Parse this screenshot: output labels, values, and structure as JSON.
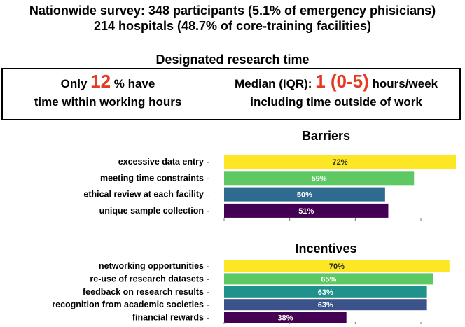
{
  "header": {
    "line1": "Nationwide survey: 348 participants (5.1% of emergency phisicians)",
    "line2": "214 hospitals (48.7% of core-training facilities)"
  },
  "research_time": {
    "title": "Designated research time",
    "left_prefix": "Only ",
    "left_value": "12",
    "left_suffix": " % have",
    "left_line2": "time within working hours",
    "right_prefix": "Median (IQR): ",
    "right_value": "1 (0-5)",
    "right_suffix": " hours/week",
    "right_line2": "including time outside of work",
    "accent_color": "#e53a23"
  },
  "chart_data": [
    {
      "type": "bar",
      "orientation": "horizontal",
      "title": "Barriers",
      "categories": [
        "excessive data entry",
        "meeting time constraints",
        "ethical review at each facility",
        "unique sample collection"
      ],
      "values": [
        72,
        59,
        50,
        51
      ],
      "labels": [
        "72%",
        "59%",
        "50%",
        "51%"
      ],
      "colors": [
        "#fde725",
        "#5ec962",
        "#2f6b8e",
        "#440154"
      ],
      "label_colors": [
        "#222222",
        "#ffffff",
        "#ffffff",
        "#ffffff"
      ],
      "xlim": [
        0,
        72
      ]
    },
    {
      "type": "bar",
      "orientation": "horizontal",
      "title": "Incentives",
      "categories": [
        "networking opportunities",
        "re-use of research datasets",
        "feedback on research results",
        "recognition from academic societies",
        "financial rewards"
      ],
      "values": [
        70,
        65,
        63,
        63,
        38
      ],
      "labels": [
        "70%",
        "65%",
        "63%",
        "63%",
        "38%"
      ],
      "colors": [
        "#fde725",
        "#5ec962",
        "#21918c",
        "#3b528b",
        "#440154"
      ],
      "label_colors": [
        "#222222",
        "#ffffff",
        "#ffffff",
        "#ffffff",
        "#ffffff"
      ],
      "xlim": [
        0,
        72
      ]
    }
  ]
}
